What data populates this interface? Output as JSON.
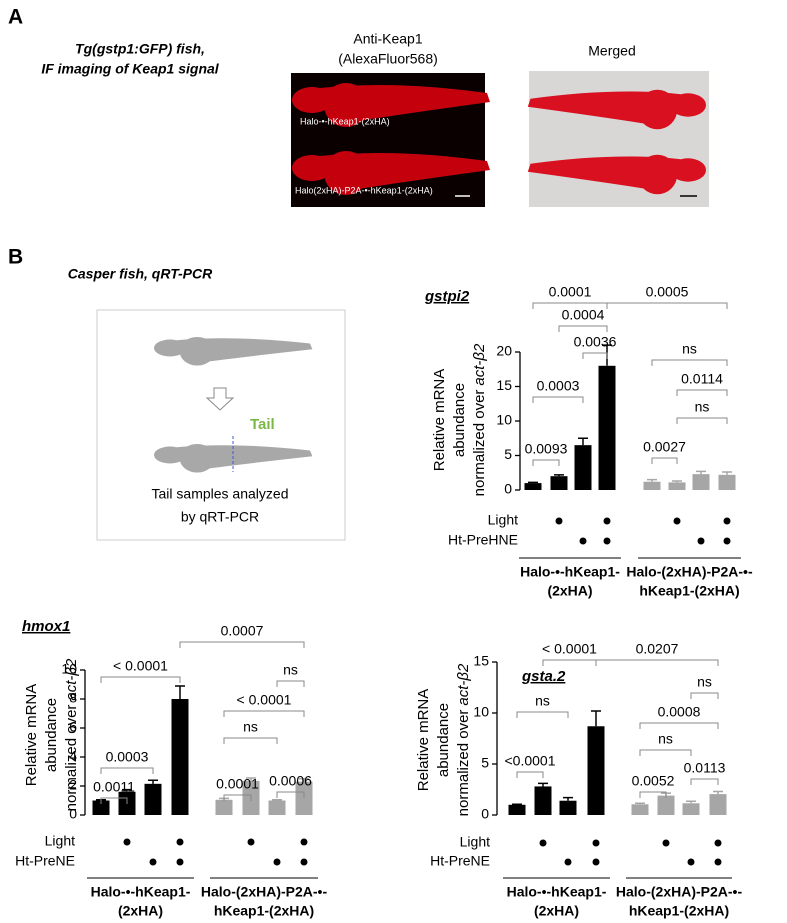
{
  "panel_a": {
    "label": "A",
    "caption": [
      "Tg(gstp1:GFP) fish,",
      "IF imaging of Keap1 signal"
    ],
    "image_1": {
      "title": [
        "Anti-Keap1",
        "(AlexaFluor568)"
      ],
      "labels": [
        "Halo-•-hKeap1-(2xHA)",
        "Halo(2xHA)-P2A-•-hKeap1-(2xHA)"
      ]
    },
    "image_2": {
      "title": "Merged"
    }
  },
  "panel_b": {
    "label": "B",
    "caption": "Casper fish, qRT-PCR",
    "schematic": {
      "tail_label": "Tail",
      "caption": [
        "Tail samples analyzed",
        "by qRT-PCR"
      ]
    }
  },
  "chart_data": [
    {
      "type": "bar",
      "title": "gstpi2",
      "ylabel": [
        "Relative mRNA",
        "abundance",
        "normalized over"
      ],
      "ylabel_gene": "act-β2",
      "values": [
        1.0,
        2.0,
        6.5,
        18.0,
        1.2,
        1.1,
        2.3,
        2.2
      ],
      "errors": [
        0.1,
        0.2,
        1.0,
        3.0,
        0.3,
        0.2,
        0.4,
        0.4
      ],
      "colors": [
        "#000000",
        "#000000",
        "#000000",
        "#000000",
        "#a6a6a6",
        "#a6a6a6",
        "#a6a6a6",
        "#a6a6a6"
      ],
      "ylim": [
        0,
        20
      ],
      "yticks": [
        0,
        5,
        10,
        15,
        20
      ],
      "annotations": [
        "0.0001",
        "0.0005",
        "0.0004",
        "0.0036",
        "ns",
        "0.0114",
        "ns",
        "0.0003",
        "0.0093",
        "0.0027"
      ],
      "conditions": [
        {
          "name": "Light",
          "present": [
            false,
            true,
            false,
            true,
            false,
            true,
            false,
            true
          ]
        },
        {
          "name": "Ht-PreHNE",
          "present": [
            false,
            false,
            true,
            true,
            false,
            false,
            true,
            true
          ]
        }
      ],
      "groups": [
        [
          "Halo-•-hKeap1-",
          "(2xHA)"
        ],
        [
          "Halo-(2xHA)-P2A-•-",
          "hKeap1-(2xHA)"
        ]
      ]
    },
    {
      "type": "bar",
      "title": "hmox1",
      "ylabel": [
        "Relative mRNA",
        "abundance",
        "normalized over"
      ],
      "ylabel_gene": "act-β2",
      "values": [
        1.0,
        1.6,
        2.15,
        8.0,
        1.05,
        2.35,
        1.0,
        2.3
      ],
      "errors": [
        0.05,
        0.15,
        0.25,
        0.9,
        0.1,
        0.2,
        0.05,
        0.2
      ],
      "colors": [
        "#000000",
        "#000000",
        "#000000",
        "#000000",
        "#a6a6a6",
        "#a6a6a6",
        "#a6a6a6",
        "#a6a6a6"
      ],
      "ylim": [
        0,
        10
      ],
      "yticks": [
        0,
        2,
        4,
        6,
        8,
        10
      ],
      "annotations": [
        "0.0007",
        "ns",
        "< 0.0001",
        "< 0.0001",
        "ns",
        "0.0003",
        "0.0011",
        "0.0001",
        "0.0006"
      ],
      "conditions": [
        {
          "name": "Light",
          "present": [
            false,
            true,
            false,
            true,
            false,
            true,
            false,
            true
          ]
        },
        {
          "name": "Ht-PreNE",
          "present": [
            false,
            false,
            true,
            true,
            false,
            false,
            true,
            true
          ]
        }
      ],
      "groups": [
        [
          "Halo-•-hKeap1-",
          "(2xHA)"
        ],
        [
          "Halo-(2xHA)-P2A-•-",
          "hKeap1-(2xHA)"
        ]
      ]
    },
    {
      "type": "bar",
      "title": "gsta.2",
      "ylabel": [
        "Relative mRNA",
        "abundance",
        "normalized over"
      ],
      "ylabel_gene": "act-β2",
      "values": [
        1.0,
        2.8,
        1.4,
        8.7,
        1.05,
        1.9,
        1.15,
        2.05
      ],
      "errors": [
        0.05,
        0.3,
        0.3,
        1.5,
        0.1,
        0.25,
        0.2,
        0.25
      ],
      "colors": [
        "#000000",
        "#000000",
        "#000000",
        "#000000",
        "#a6a6a6",
        "#a6a6a6",
        "#a6a6a6",
        "#a6a6a6"
      ],
      "ylim": [
        0,
        15
      ],
      "yticks": [
        0,
        5,
        10,
        15
      ],
      "annotations": [
        "0.0207",
        "ns",
        "< 0.0001",
        "ns",
        "0.0008",
        "<0.0001",
        "ns",
        "0.0052",
        "0.0113"
      ],
      "conditions": [
        {
          "name": "Light",
          "present": [
            false,
            true,
            false,
            true,
            false,
            true,
            false,
            true
          ]
        },
        {
          "name": "Ht-PreNE",
          "present": [
            false,
            false,
            true,
            true,
            false,
            false,
            true,
            true
          ]
        }
      ],
      "groups": [
        [
          "Halo-•-hKeap1-",
          "(2xHA)"
        ],
        [
          "Halo-(2xHA)-P2A-•-",
          "hKeap1-(2xHA)"
        ]
      ]
    }
  ]
}
